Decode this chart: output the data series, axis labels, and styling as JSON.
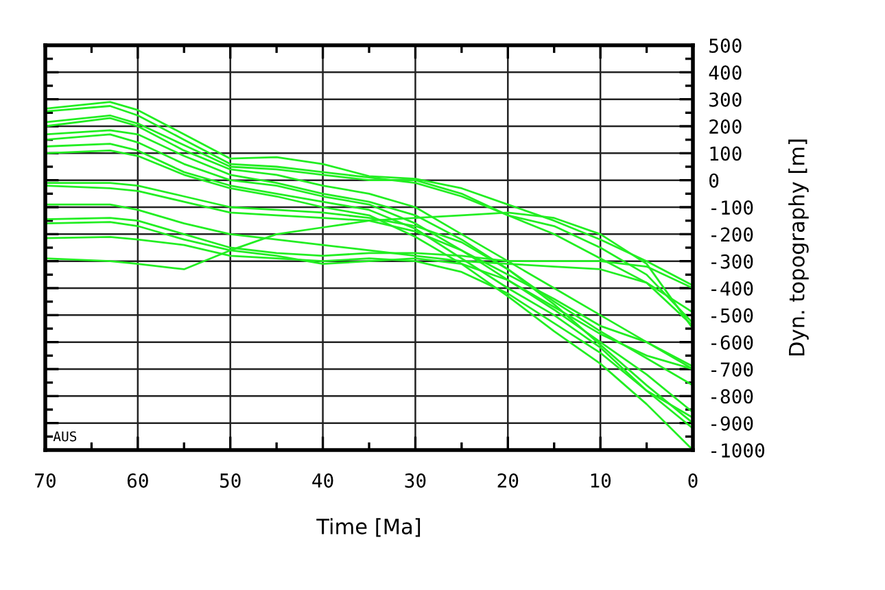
{
  "chart_data": {
    "type": "line",
    "xlabel": "Time [Ma]",
    "ylabel": "Dyn. topography [m]",
    "annotations": [
      "AUS"
    ],
    "x": [
      70,
      63,
      60,
      55,
      50,
      45,
      40,
      35,
      30,
      25,
      20,
      15,
      10,
      5,
      0
    ],
    "series": [
      {
        "color": "#22ee22",
        "values": [
          265,
          290,
          260,
          170,
          80,
          85,
          60,
          15,
          5,
          -30,
          -90,
          -150,
          -220,
          -300,
          -390
        ]
      },
      {
        "color": "#22ee22",
        "values": [
          255,
          275,
          240,
          150,
          60,
          50,
          30,
          10,
          -10,
          -60,
          -130,
          -200,
          -290,
          -380,
          -490
        ]
      },
      {
        "color": "#22ee22",
        "values": [
          215,
          240,
          210,
          130,
          50,
          40,
          20,
          0,
          0,
          -50,
          -130,
          -170,
          -250,
          -350,
          -530
        ]
      },
      {
        "color": "#22ee22",
        "values": [
          200,
          230,
          200,
          110,
          40,
          20,
          -20,
          -50,
          -100,
          -200,
          -300,
          -400,
          -500,
          -600,
          -700
        ]
      },
      {
        "color": "#22ee22",
        "values": [
          170,
          185,
          170,
          90,
          20,
          -10,
          -50,
          -80,
          -130,
          -220,
          -330,
          -450,
          -560,
          -660,
          -760
        ]
      },
      {
        "color": "#22ee22",
        "values": [
          150,
          170,
          140,
          60,
          0,
          -20,
          -60,
          -90,
          -160,
          -260,
          -370,
          -480,
          -600,
          -720,
          -860
        ]
      },
      {
        "color": "#22ee22",
        "values": [
          125,
          135,
          110,
          30,
          -20,
          -50,
          -80,
          -110,
          -180,
          -290,
          -400,
          -500,
          -620,
          -780,
          -920
        ]
      },
      {
        "color": "#22ee22",
        "values": [
          100,
          110,
          90,
          20,
          -30,
          -60,
          -100,
          -130,
          -210,
          -310,
          -430,
          -560,
          -680,
          -830,
          -1000
        ]
      },
      {
        "color": "#22ee22",
        "values": [
          -10,
          -10,
          -20,
          -60,
          -100,
          -110,
          -120,
          -140,
          -170,
          -230,
          -330,
          -460,
          -610,
          -760,
          -900
        ]
      },
      {
        "color": "#22ee22",
        "values": [
          -20,
          -30,
          -40,
          -80,
          -120,
          -130,
          -140,
          -150,
          -190,
          -260,
          -350,
          -440,
          -540,
          -600,
          -690
        ]
      },
      {
        "color": "#22ee22",
        "values": [
          -90,
          -90,
          -110,
          -160,
          -200,
          -220,
          -240,
          -260,
          -280,
          -300,
          -310,
          -320,
          -330,
          -380,
          -540
        ]
      },
      {
        "color": "#22ee22",
        "values": [
          -145,
          -140,
          -150,
          -200,
          -250,
          -270,
          -280,
          -270,
          -270,
          -280,
          -300,
          -300,
          -300,
          -320,
          -400
        ]
      },
      {
        "color": "#22ee22",
        "values": [
          -160,
          -155,
          -170,
          -220,
          -260,
          -280,
          -310,
          -300,
          -290,
          -310,
          -370,
          -470,
          -570,
          -650,
          -700
        ]
      },
      {
        "color": "#22ee22",
        "values": [
          -290,
          -300,
          -310,
          -330,
          -260,
          -200,
          -175,
          -150,
          -140,
          -130,
          -120,
          -140,
          -200,
          -310,
          -550
        ]
      },
      {
        "color": "#22ee22",
        "values": [
          -215,
          -210,
          -220,
          -240,
          -280,
          -290,
          -300,
          -290,
          -300,
          -340,
          -420,
          -530,
          -640,
          -780,
          -880
        ]
      }
    ],
    "xlim": [
      70,
      0
    ],
    "xticks": [
      70,
      60,
      50,
      40,
      30,
      20,
      10,
      0
    ],
    "ylim": [
      -1000,
      500
    ],
    "yticks": [
      -1000,
      -900,
      -800,
      -700,
      -600,
      -500,
      -400,
      -300,
      -200,
      -100,
      0,
      100,
      200,
      300,
      400,
      500
    ],
    "grid": true,
    "marker": "none",
    "line_style": "solid",
    "legend": false
  }
}
